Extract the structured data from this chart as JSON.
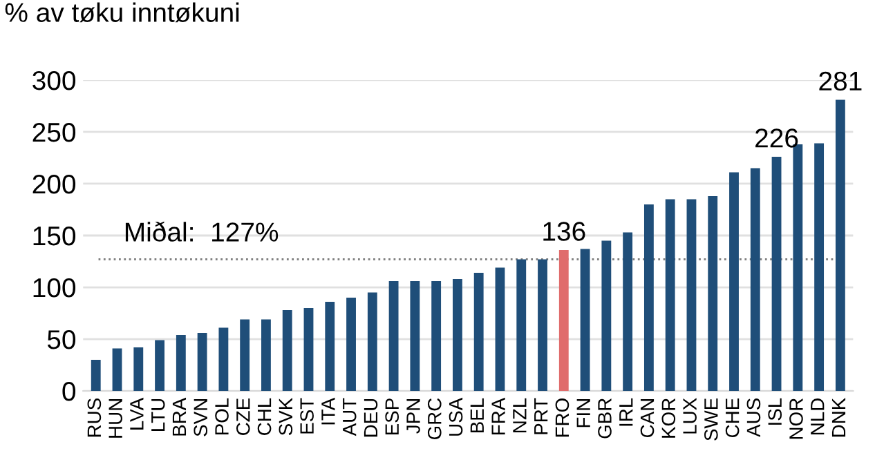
{
  "chart_data": {
    "type": "bar",
    "ylabel": "% av tøku inntøkuni",
    "categories": [
      "RUS",
      "HUN",
      "LVA",
      "LTU",
      "BRA",
      "SVN",
      "POL",
      "CZE",
      "CHL",
      "SVK",
      "EST",
      "ITA",
      "AUT",
      "DEU",
      "ESP",
      "JPN",
      "GRC",
      "USA",
      "BEL",
      "FRA",
      "NZL",
      "PRT",
      "FRO",
      "FIN",
      "GBR",
      "IRL",
      "CAN",
      "KOR",
      "LUX",
      "SWE",
      "CHE",
      "AUS",
      "ISL",
      "NOR",
      "NLD",
      "DNK"
    ],
    "values": [
      30,
      41,
      42,
      49,
      54,
      56,
      61,
      69,
      69,
      78,
      80,
      86,
      90,
      95,
      106,
      106,
      106,
      108,
      114,
      119,
      127,
      127,
      136,
      137,
      145,
      153,
      180,
      185,
      185,
      188,
      211,
      215,
      226,
      238,
      239,
      281
    ],
    "colors": [
      "#1f4e79",
      "#1f4e79",
      "#1f4e79",
      "#1f4e79",
      "#1f4e79",
      "#1f4e79",
      "#1f4e79",
      "#1f4e79",
      "#1f4e79",
      "#1f4e79",
      "#1f4e79",
      "#1f4e79",
      "#1f4e79",
      "#1f4e79",
      "#1f4e79",
      "#1f4e79",
      "#1f4e79",
      "#1f4e79",
      "#1f4e79",
      "#1f4e79",
      "#1f4e79",
      "#1f4e79",
      "#e06c6c",
      "#1f4e79",
      "#1f4e79",
      "#1f4e79",
      "#1f4e79",
      "#1f4e79",
      "#1f4e79",
      "#1f4e79",
      "#1f4e79",
      "#1f4e79",
      "#1f4e79",
      "#1f4e79",
      "#1f4e79",
      "#1f4e79"
    ],
    "value_labels": [
      null,
      null,
      null,
      null,
      null,
      null,
      null,
      null,
      null,
      null,
      null,
      null,
      null,
      null,
      null,
      null,
      null,
      null,
      null,
      null,
      null,
      null,
      "136",
      null,
      null,
      null,
      null,
      null,
      null,
      null,
      null,
      null,
      "226",
      null,
      null,
      "281"
    ],
    "ylim": [
      0,
      300
    ],
    "yticks": [
      0,
      50,
      100,
      150,
      200,
      250,
      300
    ],
    "grid": "y",
    "ref_lines": [
      {
        "axis": "y",
        "value": 127,
        "label": "Miðal:  127%",
        "color": "#808080",
        "line_style": "dotted"
      }
    ]
  }
}
